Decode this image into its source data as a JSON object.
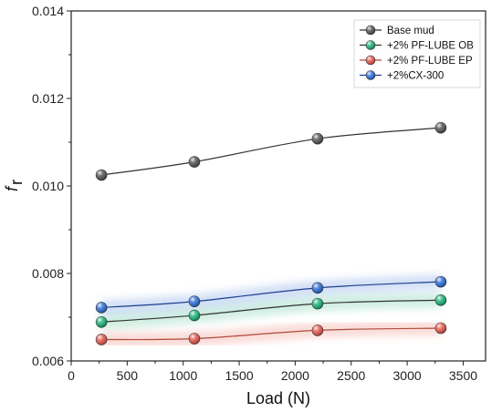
{
  "chart_data": {
    "type": "line",
    "xlabel": "Load (N)",
    "ylabel": "f",
    "ylabel_sub": "r",
    "xlim": [
      0,
      3700
    ],
    "ylim": [
      0.006,
      0.014
    ],
    "x_ticks": [
      0,
      500,
      1000,
      1500,
      2000,
      2500,
      3000,
      3500
    ],
    "x_tick_labels": [
      "0",
      "500",
      "1000",
      "1500",
      "2000",
      "2500",
      "3000",
      "3500"
    ],
    "y_ticks": [
      0.006,
      0.008,
      0.01,
      0.012,
      0.014
    ],
    "y_tick_labels": [
      "0.006",
      "0.008",
      "0.010",
      "0.012",
      "0.014"
    ],
    "grid": false,
    "legend_position": "top-right",
    "x": [
      270,
      1100,
      2200,
      3300
    ],
    "series": [
      {
        "name": "Base mud",
        "color": "#555555",
        "line_color": "#333333",
        "values": [
          0.01025,
          0.01055,
          0.01108,
          0.01133
        ]
      },
      {
        "name": "+2% PF-LUBE OB",
        "color": "#1db37a",
        "line_color": "#333333",
        "values": [
          0.00689,
          0.00704,
          0.00731,
          0.00739
        ]
      },
      {
        "name": "+2% PF-LUBE EP",
        "color": "#e65a4f",
        "line_color": "#b04b3b",
        "values": [
          0.00649,
          0.00651,
          0.0067,
          0.00675
        ]
      },
      {
        "name": "+2%CX-300",
        "color": "#2f6fd8",
        "line_color": "#1e3f8f",
        "values": [
          0.00722,
          0.00736,
          0.00767,
          0.00781
        ]
      }
    ]
  }
}
